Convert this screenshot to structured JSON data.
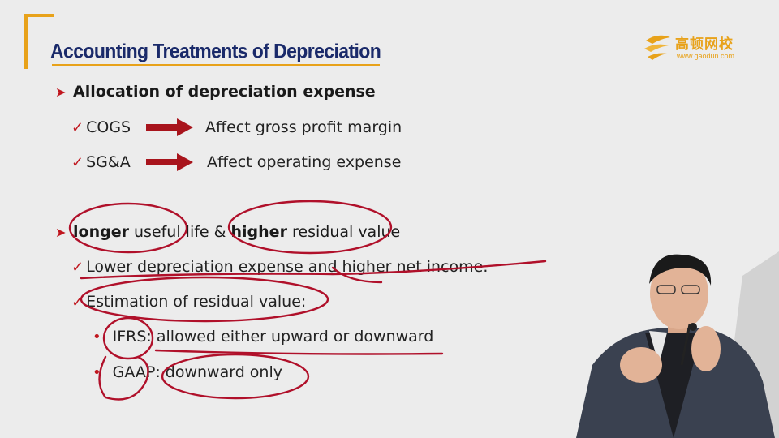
{
  "slide": {
    "title": "Accounting Treatments of Depreciation",
    "logo": {
      "cn": "高顿网校",
      "url": "www.gaodun.com"
    },
    "section1": {
      "heading": "Allocation of depreciation expense",
      "rows": [
        {
          "label": "COGS",
          "result": "Affect gross profit margin"
        },
        {
          "label": "SG&A",
          "result": "Affect operating expense"
        }
      ]
    },
    "section2": {
      "heading_part1": "longer",
      "heading_part2": " useful life & ",
      "heading_part3": "higher",
      "heading_part4": " residual value",
      "point1": "Lower depreciation expense and higher net income.",
      "point2": "Estimation of residual value:",
      "sub1_label": "IFRS",
      "sub1_text": ": allowed either upward or downward",
      "sub2_label": "GAAP",
      "sub2_text": ": downward only"
    }
  },
  "colors": {
    "title": "#1a2a6a",
    "accent": "#e8a21a",
    "bullet": "#c0161e",
    "ink": "#b0102a"
  }
}
